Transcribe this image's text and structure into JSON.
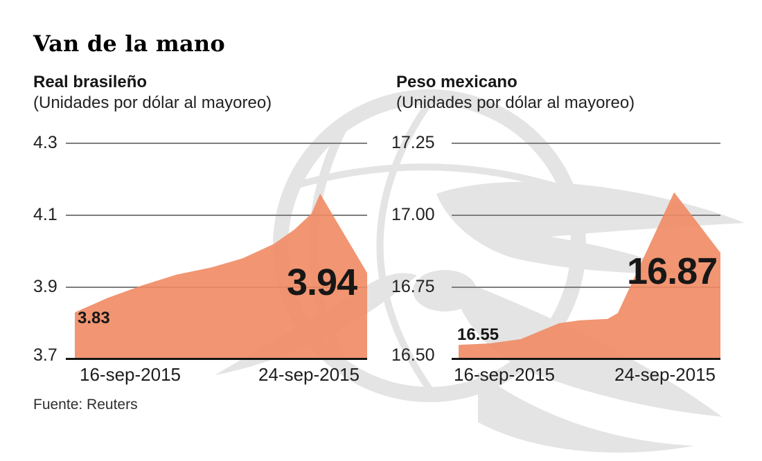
{
  "page": {
    "title": "Van de la mano",
    "source": "Fuente: Reuters"
  },
  "colors": {
    "area_fill": "#F08A63",
    "gridline": "#7D7D7D",
    "baseline": "#161616",
    "text": "#1C1C1C",
    "watermark": "#E4E4E4",
    "background": "#FFFFFF"
  },
  "watermark": {
    "icon": "eagle-globe-watermark"
  },
  "chart_data": [
    {
      "type": "area",
      "title": "Real brasileño",
      "subtitle": "(Unidades por dólar al mayoreo)",
      "y_ticks": [
        "4.3",
        "4.1",
        "3.9",
        "3.7"
      ],
      "x_ticks": [
        "16-sep-2015",
        "24-sep-2015"
      ],
      "ylim": [
        3.7,
        4.3
      ],
      "grid": true,
      "legend": "none",
      "start_label": "3.83",
      "end_label": "3.94",
      "start_value": 3.83,
      "end_value": 3.94,
      "peak_value": 4.16,
      "plot": {
        "area_start_x": 13
      },
      "series": [
        [
          0.0,
          3.83
        ],
        [
          0.111,
          3.87
        ],
        [
          0.23,
          3.905
        ],
        [
          0.348,
          3.935
        ],
        [
          0.467,
          3.955
        ],
        [
          0.573,
          3.98
        ],
        [
          0.68,
          4.02
        ],
        [
          0.751,
          4.06
        ],
        [
          0.81,
          4.105
        ],
        [
          0.839,
          4.16
        ],
        [
          1.0,
          3.94
        ]
      ]
    },
    {
      "type": "area",
      "title": "Peso mexicano",
      "subtitle": "(Unidades por dólar al mayoreo)",
      "y_ticks": [
        "17.25",
        "17.00",
        "16.75",
        "16.50"
      ],
      "x_ticks": [
        "16-sep-2015",
        "24-sep-2015"
      ],
      "ylim": [
        16.5,
        17.25
      ],
      "grid": true,
      "legend": "none",
      "start_label": "16.55",
      "end_label": "16.87",
      "start_value": 16.55,
      "end_value": 16.87,
      "peak_value": 17.08,
      "plot": {
        "area_start_x": 10
      },
      "series": [
        [
          0.0,
          16.55
        ],
        [
          0.119,
          16.555
        ],
        [
          0.238,
          16.57
        ],
        [
          0.317,
          16.6
        ],
        [
          0.384,
          16.625
        ],
        [
          0.463,
          16.635
        ],
        [
          0.569,
          16.64
        ],
        [
          0.608,
          16.66
        ],
        [
          0.823,
          17.08
        ],
        [
          1.0,
          16.87
        ]
      ]
    }
  ]
}
